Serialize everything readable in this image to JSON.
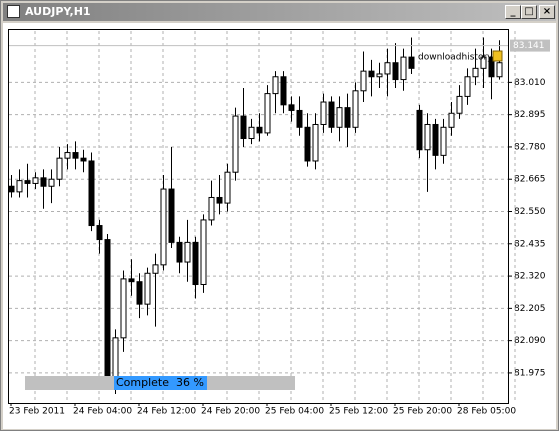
{
  "window": {
    "title": "AUDJPY,H1"
  },
  "chart_data": {
    "type": "candlestick",
    "categories": [
      "23 Feb 2011",
      null,
      null,
      null,
      null,
      null,
      null,
      null,
      "24 Feb 04:00",
      null,
      null,
      null,
      null,
      null,
      null,
      null,
      "24 Feb 12:00",
      null,
      null,
      null,
      null,
      null,
      null,
      null,
      "24 Feb 20:00",
      null,
      null,
      null,
      null,
      null,
      null,
      null,
      "25 Feb 04:00",
      null,
      null,
      null,
      null,
      null,
      null,
      null,
      "25 Feb 12:00",
      null,
      null,
      null,
      null,
      null,
      null,
      null,
      "25 Feb 20:00",
      null,
      null,
      null,
      null,
      null,
      null,
      null,
      "28 Feb 05:00",
      null,
      null,
      null,
      null,
      null
    ],
    "open": [
      82.64,
      82.62,
      82.66,
      82.65,
      82.67,
      82.64,
      82.665,
      82.74,
      82.76,
      82.74,
      82.73,
      82.5,
      82.45,
      81.96,
      82.1,
      82.31,
      82.3,
      82.22,
      82.33,
      82.36,
      82.63,
      82.44,
      82.37,
      82.44,
      82.29,
      82.52,
      82.6,
      82.58,
      82.69,
      82.89,
      82.81,
      82.85,
      82.83,
      82.97,
      83.03,
      82.93,
      82.91,
      82.85,
      82.73,
      82.86,
      82.94,
      82.85,
      82.92,
      82.85,
      82.98,
      83.05,
      83.03,
      83.04,
      83.08,
      83.02,
      83.1,
      82.91,
      82.77,
      82.86,
      82.75,
      82.85,
      82.9,
      82.96,
      83.03,
      83.06,
      83.1,
      83.03
    ],
    "high": [
      82.68,
      82.7,
      82.72,
      82.69,
      82.7,
      82.7,
      82.78,
      82.79,
      82.8,
      82.77,
      82.76,
      82.52,
      82.47,
      82.13,
      82.34,
      82.38,
      82.33,
      82.35,
      82.4,
      82.68,
      82.78,
      82.46,
      82.52,
      82.46,
      82.54,
      82.66,
      82.68,
      82.72,
      82.92,
      82.99,
      82.88,
      82.9,
      83.0,
      83.05,
      83.05,
      82.96,
      82.96,
      82.9,
      82.9,
      82.97,
      82.96,
      82.96,
      82.97,
      83.01,
      83.12,
      83.09,
      83.08,
      83.13,
      83.15,
      83.13,
      83.17,
      82.93,
      82.9,
      82.88,
      82.88,
      82.94,
      83.0,
      83.06,
      83.13,
      83.17,
      83.13,
      83.16
    ],
    "low": [
      82.6,
      82.6,
      82.6,
      82.63,
      82.56,
      82.58,
      82.64,
      82.7,
      82.7,
      82.69,
      82.48,
      82.4,
      81.92,
      81.9,
      82.05,
      82.25,
      82.17,
      82.18,
      82.14,
      82.34,
      82.42,
      82.33,
      82.3,
      82.24,
      82.26,
      82.5,
      82.54,
      82.55,
      82.66,
      82.78,
      82.79,
      82.8,
      82.82,
      82.9,
      82.9,
      82.87,
      82.82,
      82.71,
      82.7,
      82.83,
      82.83,
      82.8,
      82.78,
      82.83,
      82.94,
      82.96,
      82.99,
      82.96,
      82.99,
      82.98,
      83.04,
      82.74,
      82.62,
      82.7,
      82.72,
      82.82,
      82.88,
      82.93,
      83.0,
      82.99,
      82.95,
      83.02
    ],
    "close": [
      82.62,
      82.66,
      82.65,
      82.67,
      82.64,
      82.665,
      82.74,
      82.76,
      82.74,
      82.73,
      82.5,
      82.45,
      81.96,
      82.1,
      82.31,
      82.3,
      82.22,
      82.33,
      82.36,
      82.63,
      82.44,
      82.37,
      82.44,
      82.29,
      82.52,
      82.6,
      82.58,
      82.69,
      82.89,
      82.81,
      82.85,
      82.83,
      82.97,
      83.03,
      82.93,
      82.91,
      82.85,
      82.73,
      82.86,
      82.94,
      82.85,
      82.92,
      82.85,
      82.98,
      83.05,
      83.03,
      83.04,
      83.08,
      83.02,
      83.1,
      83.06,
      82.77,
      82.86,
      82.75,
      82.85,
      82.9,
      82.96,
      83.03,
      83.06,
      83.1,
      83.03,
      83.08
    ],
    "up_color": "#ffffff",
    "down_color": "#000000",
    "ylim": [
      81.875,
      83.193
    ],
    "yticks": [
      81.975,
      {
        "value": 82.09,
        "label": "82.090"
      },
      82.205,
      {
        "value": 82.32,
        "label": "82.320"
      },
      82.435,
      {
        "value": 82.55,
        "label": "82.550"
      },
      82.665,
      {
        "value": 82.78,
        "label": "82.780"
      },
      82.895,
      {
        "value": 83.01,
        "label": "83.010"
      }
    ],
    "grid": true,
    "current_price": 83.141,
    "annotation": "downloadhistory"
  },
  "progress": {
    "label": "Complete  36 %"
  }
}
